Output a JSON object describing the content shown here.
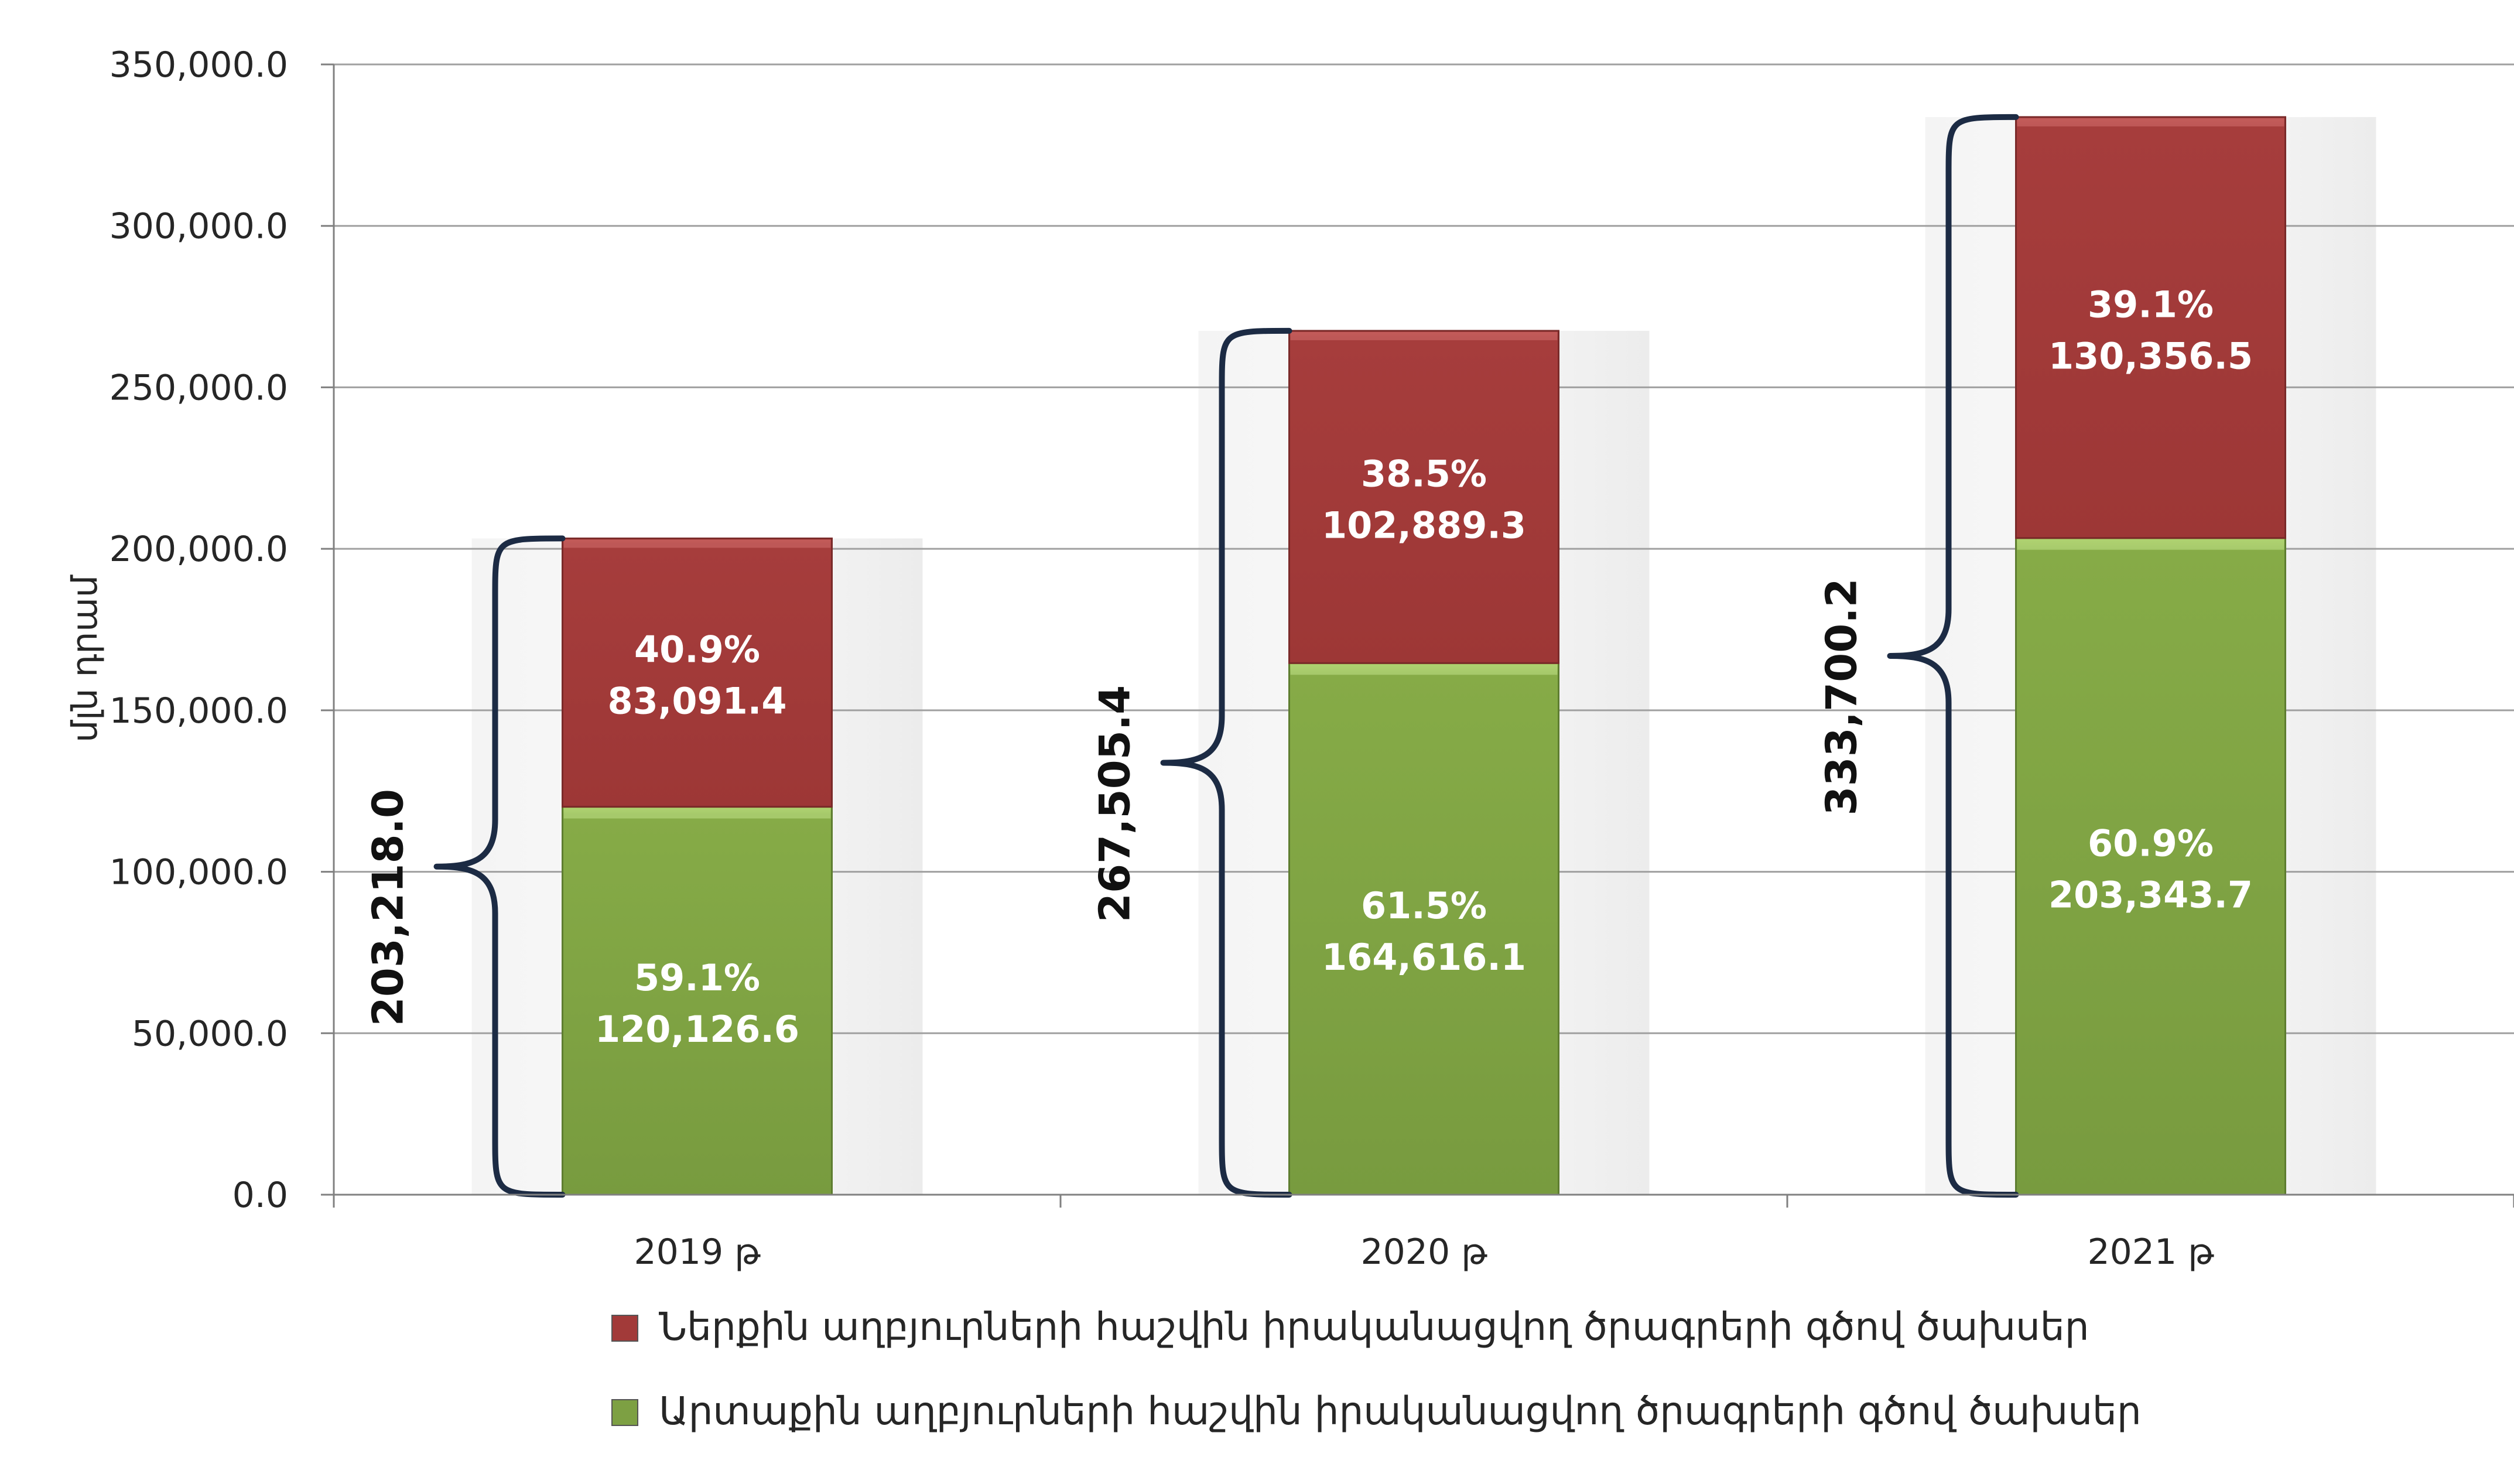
{
  "chart_data": {
    "type": "bar",
    "stacked": true,
    "title": "",
    "xlabel": "",
    "ylabel": "մլն դրամ",
    "ylim": [
      0,
      350000
    ],
    "yticks": [
      0,
      50000,
      100000,
      150000,
      200000,
      250000,
      300000,
      350000
    ],
    "ytick_labels": [
      "0.0",
      "50,000.0",
      "100,000.0",
      "150,000.0",
      "200,000.0",
      "250,000.0",
      "300,000.0",
      "350,000.0"
    ],
    "grid": true,
    "legend_position": "bottom",
    "categories": [
      "2019 թ",
      "2020 թ",
      "2021 թ"
    ],
    "series": [
      {
        "name": "Արտաքին աղբյուրների հաշվին իրականացվող ծրագրերի գծով ծախսեր",
        "color": "#7DA043",
        "values": [
          120126.6,
          164616.1,
          203343.7
        ],
        "value_labels": [
          "120,126.6",
          "164,616.1",
          "203,343.7"
        ],
        "percent_labels": [
          "59.1%",
          "61.5%",
          "60.9%"
        ]
      },
      {
        "name": "Ներքին աղբյուրների հաշվին իրականացվող ծրագրերի գծով ծախսեր",
        "color": "#A23A39",
        "values": [
          83091.4,
          102889.3,
          130356.5
        ],
        "value_labels": [
          "83,091.4",
          "102,889.3",
          "130,356.5"
        ],
        "percent_labels": [
          "40.9%",
          "38.5%",
          "39.1%"
        ]
      }
    ],
    "totals": [
      203218.0,
      267505.4,
      333700.2
    ],
    "total_labels": [
      "203,218.0",
      "267,505.4",
      "333,700.2"
    ]
  },
  "legend": {
    "items": [
      {
        "label": "Ներքին աղբյուրների հաշվին իրականացվող ծրագրերի գծով ծախսեր",
        "color": "#A23A39"
      },
      {
        "label": "Արտաքին աղբյուրների հաշվին իրականացվող ծրագրերի գծով ծախսեր",
        "color": "#7DA043"
      }
    ]
  },
  "colors": {
    "brace": "#1C2B44",
    "grid": "#A0A0A0",
    "axis": "#808080",
    "shadow": "#EFEFEF"
  }
}
